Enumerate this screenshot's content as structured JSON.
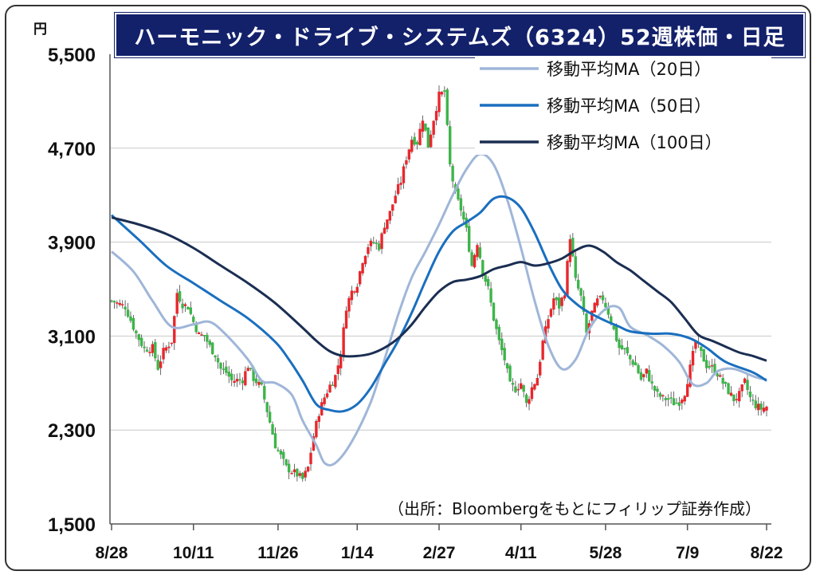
{
  "title": "ハーモニック・ドライブ・システムズ（6324）52週株価・日足",
  "unit_label": "円",
  "source_note": "（出所：Bloombergをもとにフィリップ証券作成）",
  "legend": [
    {
      "label": "移動平均MA（20日）",
      "color": "#9fb6d8"
    },
    {
      "label": "移動平均MA（50日）",
      "color": "#1a6fbf"
    },
    {
      "label": "移動平均MA（100日）",
      "color": "#1b2e52"
    }
  ],
  "colors": {
    "up": "#e8272c",
    "down": "#3db54a",
    "grid": "#c8c8c8",
    "frame": "#13216b"
  },
  "chart_data": {
    "type": "line",
    "title": "ハーモニック・ドライブ・システムズ（6324）52週株価・日足",
    "ylabel": "円",
    "ylim": [
      1500,
      5500
    ],
    "yticks": [
      "5,500",
      "4,700",
      "3,900",
      "3,100",
      "2,300",
      "1,500"
    ],
    "ytick_values": [
      5500,
      4700,
      3900,
      3100,
      2300,
      1500
    ],
    "xticks": [
      "8/28",
      "10/11",
      "11/26",
      "1/14",
      "2/27",
      "4/11",
      "5/28",
      "7/9",
      "8/22"
    ],
    "n_days": 250,
    "xtick_days": [
      0,
      30,
      61,
      90,
      120,
      150,
      181,
      211,
      240
    ],
    "grid": true,
    "legend_position": "top-right",
    "series": [
      {
        "name": "移動平均MA（20日）",
        "style": "line",
        "points": [
          [
            0,
            3820
          ],
          [
            8,
            3650
          ],
          [
            15,
            3400
          ],
          [
            22,
            3180
          ],
          [
            30,
            3200
          ],
          [
            36,
            3220
          ],
          [
            42,
            3110
          ],
          [
            50,
            2900
          ],
          [
            55,
            2720
          ],
          [
            60,
            2700
          ],
          [
            66,
            2600
          ],
          [
            70,
            2380
          ],
          [
            75,
            2170
          ],
          [
            78,
            2020
          ],
          [
            82,
            2020
          ],
          [
            88,
            2200
          ],
          [
            95,
            2540
          ],
          [
            100,
            2900
          ],
          [
            105,
            3280
          ],
          [
            110,
            3600
          ],
          [
            115,
            3820
          ],
          [
            120,
            4050
          ],
          [
            125,
            4300
          ],
          [
            130,
            4520
          ],
          [
            135,
            4650
          ],
          [
            140,
            4560
          ],
          [
            145,
            4260
          ],
          [
            150,
            3850
          ],
          [
            155,
            3400
          ],
          [
            160,
            3020
          ],
          [
            165,
            2820
          ],
          [
            170,
            2900
          ],
          [
            175,
            3160
          ],
          [
            181,
            3330
          ],
          [
            186,
            3340
          ],
          [
            190,
            3180
          ],
          [
            196,
            3110
          ],
          [
            202,
            3020
          ],
          [
            208,
            2880
          ],
          [
            213,
            2690
          ],
          [
            218,
            2700
          ],
          [
            222,
            2800
          ],
          [
            228,
            2820
          ],
          [
            236,
            2750
          ],
          [
            240,
            2730
          ]
        ]
      },
      {
        "name": "移動平均MA（50日）",
        "style": "line",
        "points": [
          [
            0,
            4130
          ],
          [
            10,
            3920
          ],
          [
            20,
            3700
          ],
          [
            30,
            3550
          ],
          [
            40,
            3400
          ],
          [
            50,
            3250
          ],
          [
            60,
            3050
          ],
          [
            65,
            2900
          ],
          [
            70,
            2720
          ],
          [
            75,
            2520
          ],
          [
            80,
            2470
          ],
          [
            85,
            2460
          ],
          [
            90,
            2520
          ],
          [
            95,
            2660
          ],
          [
            100,
            2860
          ],
          [
            105,
            3060
          ],
          [
            110,
            3300
          ],
          [
            115,
            3570
          ],
          [
            120,
            3820
          ],
          [
            125,
            3990
          ],
          [
            130,
            4070
          ],
          [
            135,
            4150
          ],
          [
            140,
            4270
          ],
          [
            145,
            4280
          ],
          [
            150,
            4190
          ],
          [
            155,
            3980
          ],
          [
            160,
            3720
          ],
          [
            165,
            3500
          ],
          [
            170,
            3380
          ],
          [
            175,
            3300
          ],
          [
            181,
            3230
          ],
          [
            186,
            3180
          ],
          [
            190,
            3140
          ],
          [
            198,
            3120
          ],
          [
            205,
            3120
          ],
          [
            212,
            3080
          ],
          [
            218,
            3000
          ],
          [
            225,
            2880
          ],
          [
            235,
            2790
          ],
          [
            240,
            2720
          ]
        ]
      },
      {
        "name": "移動平均MA（100日）",
        "style": "line",
        "points": [
          [
            0,
            4110
          ],
          [
            10,
            4050
          ],
          [
            20,
            3970
          ],
          [
            30,
            3850
          ],
          [
            40,
            3700
          ],
          [
            50,
            3550
          ],
          [
            60,
            3380
          ],
          [
            70,
            3170
          ],
          [
            75,
            3060
          ],
          [
            80,
            2970
          ],
          [
            85,
            2930
          ],
          [
            90,
            2930
          ],
          [
            95,
            2950
          ],
          [
            100,
            3000
          ],
          [
            105,
            3080
          ],
          [
            110,
            3200
          ],
          [
            115,
            3350
          ],
          [
            120,
            3480
          ],
          [
            125,
            3560
          ],
          [
            130,
            3580
          ],
          [
            135,
            3610
          ],
          [
            140,
            3670
          ],
          [
            145,
            3700
          ],
          [
            150,
            3730
          ],
          [
            155,
            3700
          ],
          [
            160,
            3720
          ],
          [
            165,
            3760
          ],
          [
            170,
            3830
          ],
          [
            175,
            3870
          ],
          [
            180,
            3820
          ],
          [
            185,
            3730
          ],
          [
            190,
            3660
          ],
          [
            195,
            3570
          ],
          [
            200,
            3480
          ],
          [
            205,
            3390
          ],
          [
            210,
            3250
          ],
          [
            215,
            3110
          ],
          [
            220,
            3060
          ],
          [
            225,
            3010
          ],
          [
            230,
            2960
          ],
          [
            235,
            2930
          ],
          [
            240,
            2890
          ]
        ]
      },
      {
        "name": "",
        "style": "candles",
        "anchors": [
          [
            0,
            3400
          ],
          [
            5,
            3350
          ],
          [
            9,
            3120
          ],
          [
            12,
            2990
          ],
          [
            15,
            3000
          ],
          [
            17,
            2830
          ],
          [
            19,
            2970
          ],
          [
            22,
            3060
          ],
          [
            24,
            3470
          ],
          [
            26,
            3370
          ],
          [
            28,
            3350
          ],
          [
            30,
            3220
          ],
          [
            32,
            3110
          ],
          [
            34,
            3100
          ],
          [
            36,
            3010
          ],
          [
            38,
            2940
          ],
          [
            40,
            2820
          ],
          [
            42,
            2790
          ],
          [
            44,
            2720
          ],
          [
            48,
            2730
          ],
          [
            50,
            2850
          ],
          [
            52,
            2740
          ],
          [
            55,
            2660
          ],
          [
            60,
            2170
          ],
          [
            64,
            1980
          ],
          [
            66,
            1950
          ],
          [
            68,
            1920
          ],
          [
            70,
            1880
          ],
          [
            72,
            1980
          ],
          [
            74,
            2250
          ],
          [
            76,
            2450
          ],
          [
            78,
            2580
          ],
          [
            80,
            2680
          ],
          [
            82,
            2760
          ],
          [
            84,
            2950
          ],
          [
            86,
            3350
          ],
          [
            88,
            3480
          ],
          [
            90,
            3550
          ],
          [
            92,
            3750
          ],
          [
            94,
            3870
          ],
          [
            96,
            3900
          ],
          [
            98,
            3860
          ],
          [
            100,
            4050
          ],
          [
            102,
            4150
          ],
          [
            104,
            4300
          ],
          [
            106,
            4420
          ],
          [
            108,
            4620
          ],
          [
            110,
            4780
          ],
          [
            112,
            4750
          ],
          [
            114,
            4960
          ],
          [
            116,
            4720
          ],
          [
            118,
            4950
          ],
          [
            120,
            5150
          ],
          [
            122,
            5180
          ],
          [
            124,
            4550
          ],
          [
            126,
            4300
          ],
          [
            128,
            4180
          ],
          [
            130,
            4000
          ],
          [
            132,
            3700
          ],
          [
            134,
            3900
          ],
          [
            136,
            3650
          ],
          [
            138,
            3500
          ],
          [
            140,
            3250
          ],
          [
            142,
            3050
          ],
          [
            144,
            2900
          ],
          [
            146,
            2680
          ],
          [
            148,
            2650
          ],
          [
            150,
            2700
          ],
          [
            152,
            2520
          ],
          [
            154,
            2660
          ],
          [
            156,
            2750
          ],
          [
            158,
            3050
          ],
          [
            160,
            3250
          ],
          [
            162,
            3420
          ],
          [
            164,
            3350
          ],
          [
            166,
            3480
          ],
          [
            168,
            3950
          ],
          [
            170,
            3570
          ],
          [
            172,
            3430
          ],
          [
            174,
            3120
          ],
          [
            176,
            3300
          ],
          [
            178,
            3400
          ],
          [
            180,
            3420
          ],
          [
            182,
            3300
          ],
          [
            184,
            3150
          ],
          [
            186,
            3000
          ],
          [
            188,
            2980
          ],
          [
            190,
            2900
          ],
          [
            192,
            2850
          ],
          [
            194,
            2730
          ],
          [
            196,
            2800
          ],
          [
            198,
            2680
          ],
          [
            200,
            2600
          ],
          [
            202,
            2570
          ],
          [
            204,
            2560
          ],
          [
            206,
            2530
          ],
          [
            208,
            2540
          ],
          [
            210,
            2620
          ],
          [
            212,
            2830
          ],
          [
            214,
            3050
          ],
          [
            216,
            2950
          ],
          [
            218,
            2850
          ],
          [
            220,
            2830
          ],
          [
            222,
            2780
          ],
          [
            224,
            2700
          ],
          [
            226,
            2630
          ],
          [
            228,
            2560
          ],
          [
            230,
            2600
          ],
          [
            232,
            2710
          ],
          [
            234,
            2570
          ],
          [
            236,
            2510
          ],
          [
            238,
            2480
          ],
          [
            240,
            2500
          ]
        ]
      }
    ]
  }
}
